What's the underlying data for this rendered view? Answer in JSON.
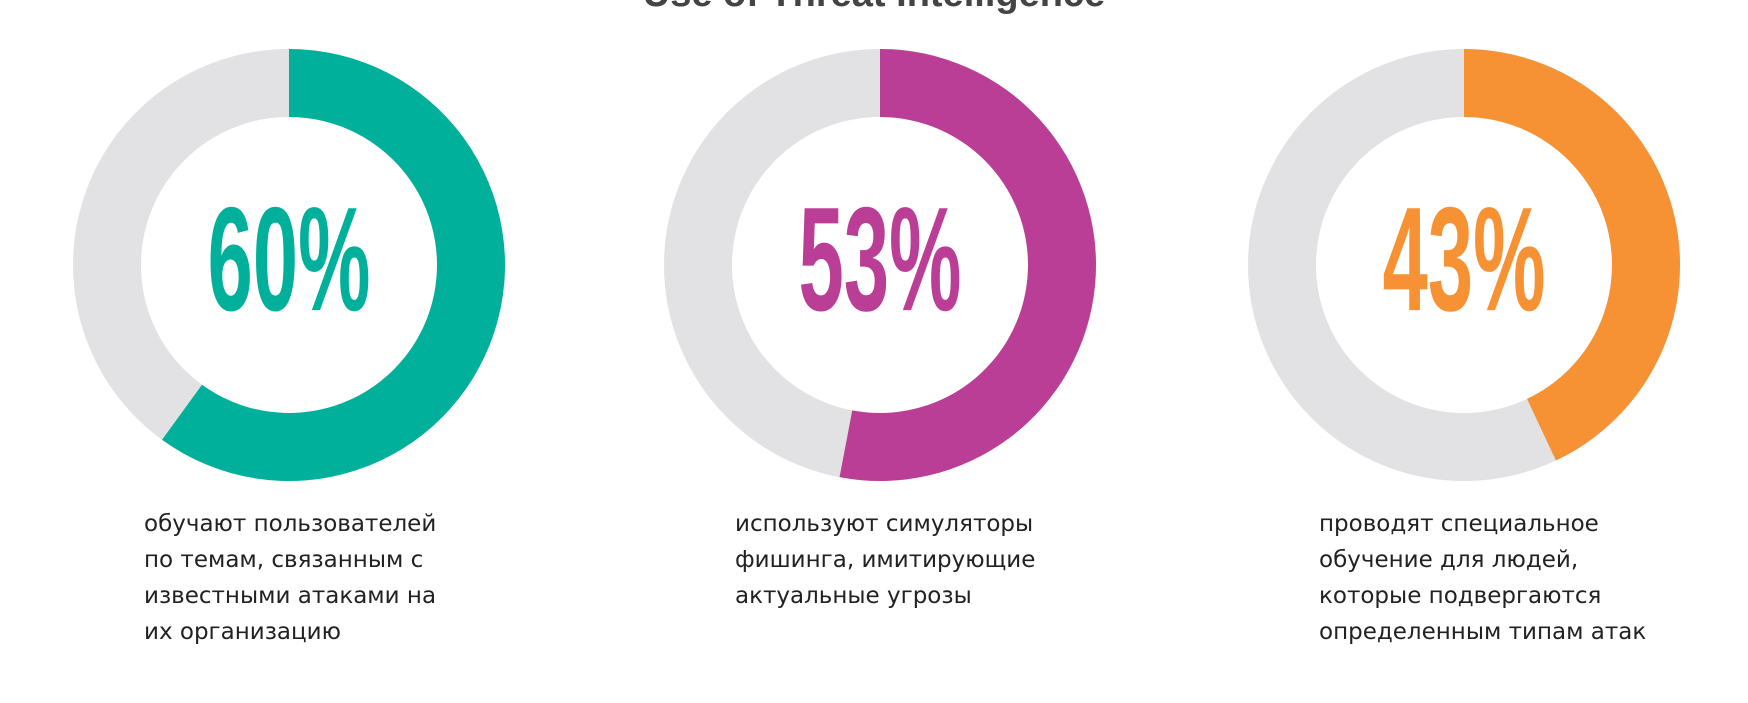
{
  "title": "Use of Threat Intelligence",
  "chart_data": [
    {
      "type": "donut",
      "value": 60,
      "value_label": "60%",
      "color": "#00b09b",
      "description": [
        "обучают пользователей",
        "по темам, связанным с",
        "известными атаками на",
        "их организацию"
      ]
    },
    {
      "type": "donut",
      "value": 53,
      "value_label": "53%",
      "color": "#bb3e96",
      "description": [
        "используют симуляторы",
        "фишинга, имитирующие",
        "актуальные угрозы"
      ]
    },
    {
      "type": "donut",
      "value": 43,
      "value_label": "43%",
      "color": "#f69134",
      "description": [
        "проводят специальное",
        "обучение для людей,",
        "которые подвергаются",
        "определенным типам атак"
      ]
    }
  ]
}
